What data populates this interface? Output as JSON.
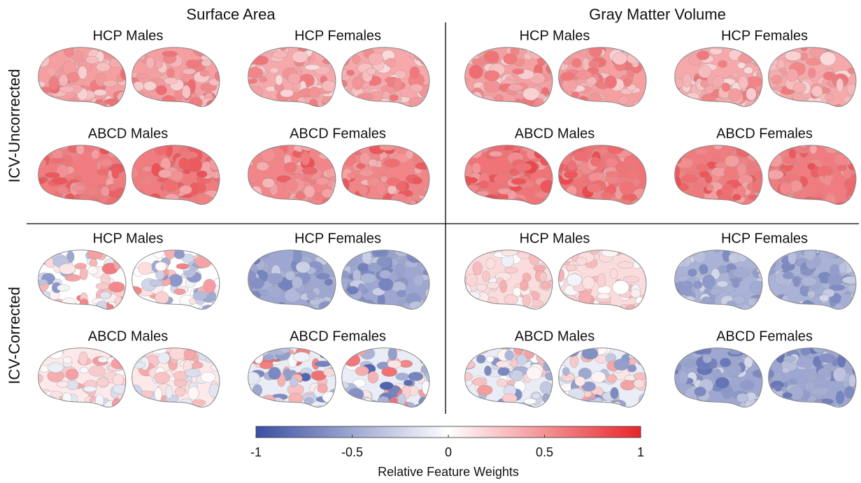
{
  "columns": [
    "Surface Area",
    "Gray Matter Volume"
  ],
  "rows": [
    "ICV-Uncorrected",
    "ICV-Corrected"
  ],
  "panels": [
    "HCP Males",
    "HCP Females",
    "HCP Males",
    "HCP Females",
    "ABCD Males",
    "ABCD Females",
    "ABCD Males",
    "ABCD Females",
    "HCP Males",
    "HCP Females",
    "HCP Males",
    "HCP Females",
    "ABCD Males",
    "ABCD Females",
    "ABCD Males",
    "ABCD Females"
  ],
  "colorbar": {
    "label": "Relative Feature Weights",
    "xlim": [
      -1,
      1
    ],
    "xticks": [
      -1,
      -0.5,
      0,
      0.5,
      1
    ],
    "colors": [
      "#3b4fa3",
      "#ffffff",
      "#e8252a"
    ]
  }
}
